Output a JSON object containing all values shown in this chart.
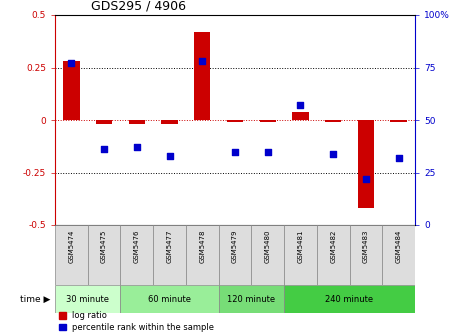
{
  "title": "GDS295 / 4906",
  "samples": [
    "GSM5474",
    "GSM5475",
    "GSM5476",
    "GSM5477",
    "GSM5478",
    "GSM5479",
    "GSM5480",
    "GSM5481",
    "GSM5482",
    "GSM5483",
    "GSM5484"
  ],
  "log_ratio": [
    0.28,
    -0.02,
    -0.02,
    -0.02,
    0.42,
    -0.01,
    -0.01,
    0.04,
    -0.01,
    -0.42,
    -0.01
  ],
  "percentile_rank": [
    77,
    36,
    37,
    33,
    78,
    35,
    35,
    57,
    34,
    22,
    32
  ],
  "groups": [
    {
      "label": "30 minute",
      "start": 0,
      "end": 2,
      "color": "#ccffcc"
    },
    {
      "label": "60 minute",
      "start": 2,
      "end": 5,
      "color": "#99ee99"
    },
    {
      "label": "120 minute",
      "start": 5,
      "end": 7,
      "color": "#77dd77"
    },
    {
      "label": "240 minute",
      "start": 7,
      "end": 11,
      "color": "#44cc44"
    }
  ],
  "ylim_left": [
    -0.5,
    0.5
  ],
  "ylim_right": [
    0,
    100
  ],
  "bar_color_red": "#cc0000",
  "bar_color_blue": "#0000cc",
  "bg_color": "#ffffff",
  "sample_bg": "#dddddd",
  "bar_width": 0.5,
  "blue_square_size": 25
}
